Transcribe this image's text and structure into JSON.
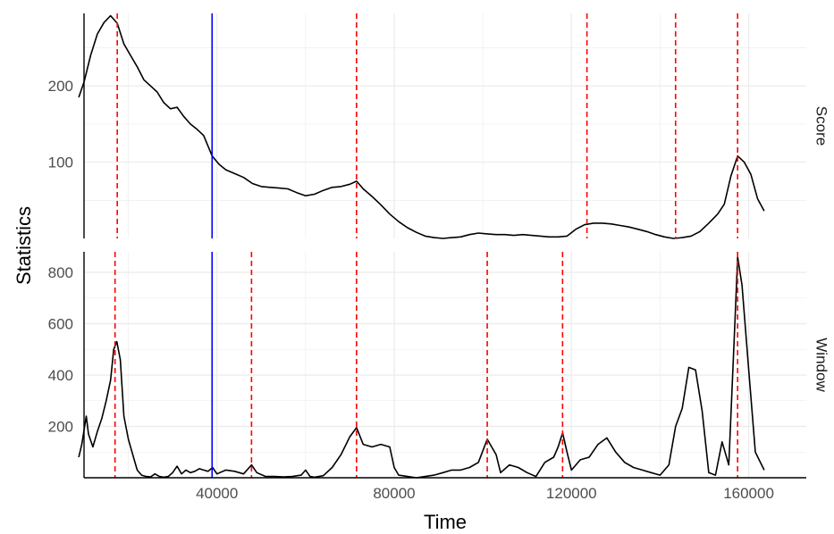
{
  "chart_data": {
    "type": "line",
    "xlabel": "Time",
    "ylabel": "Statistics",
    "x_ticks": [
      40000,
      80000,
      120000,
      160000
    ],
    "xlim": [
      10000,
      173000
    ],
    "blue_line_x": 38900,
    "colors": {
      "series": "#000000",
      "blue": "#0000ff",
      "red": "#ff0000",
      "grid": "#ebebeb"
    },
    "grid": true,
    "panels": [
      {
        "name": "Score",
        "strip_label": "Score",
        "ylim": [
          0,
          295
        ],
        "y_ticks": [
          100,
          200
        ],
        "red_lines": [
          17500,
          71500,
          123500,
          143500,
          157500
        ],
        "series": {
          "x": [
            8800,
            10000,
            11500,
            13000,
            14500,
            16000,
            17500,
            19000,
            20500,
            22000,
            23500,
            25000,
            26500,
            28000,
            29500,
            31000,
            32500,
            34000,
            35500,
            37000,
            38900,
            40500,
            42000,
            44000,
            46000,
            48000,
            50000,
            52000,
            54000,
            56000,
            58000,
            60000,
            62000,
            64000,
            66000,
            68000,
            70000,
            71500,
            73000,
            75000,
            77000,
            79000,
            81000,
            83000,
            85000,
            87000,
            89000,
            91000,
            93000,
            95000,
            97000,
            99000,
            101000,
            103000,
            105000,
            107000,
            109000,
            111000,
            113000,
            115000,
            117000,
            119000,
            121000,
            123000,
            125000,
            127000,
            129000,
            131000,
            133000,
            135000,
            137000,
            139000,
            141000,
            143000,
            145000,
            147000,
            149000,
            151000,
            153000,
            154500,
            156000,
            157500,
            159000,
            160500,
            162000,
            163500
          ],
          "y": [
            185,
            205,
            240,
            268,
            283,
            292,
            282,
            255,
            240,
            225,
            208,
            200,
            192,
            178,
            170,
            172,
            160,
            150,
            143,
            135,
            108,
            97,
            90,
            85,
            80,
            72,
            68,
            67,
            66,
            65,
            60,
            56,
            58,
            63,
            67,
            68,
            71,
            75,
            65,
            55,
            44,
            32,
            22,
            14,
            8,
            3,
            1,
            0,
            1,
            2,
            5,
            7,
            6,
            5,
            5,
            4,
            5,
            4,
            3,
            2,
            2,
            3,
            12,
            18,
            20,
            20,
            19,
            17,
            15,
            12,
            9,
            5,
            2,
            0,
            1,
            3,
            9,
            20,
            32,
            45,
            82,
            108,
            100,
            84,
            52,
            36
          ]
        }
      },
      {
        "name": "Window",
        "strip_label": "Window",
        "ylim": [
          0,
          880
        ],
        "y_ticks": [
          200,
          400,
          600,
          800
        ],
        "red_lines": [
          17000,
          47800,
          71500,
          101000,
          118000,
          157500
        ],
        "series": {
          "x": [
            8800,
            9500,
            10500,
            11000,
            12000,
            13000,
            14000,
            15000,
            16000,
            16700,
            17400,
            18200,
            19000,
            20000,
            21000,
            22000,
            23000,
            24000,
            25000,
            26000,
            27000,
            28000,
            29000,
            30000,
            31000,
            32000,
            33000,
            34000,
            35000,
            36000,
            37000,
            38000,
            39000,
            40000,
            42000,
            44000,
            46000,
            47800,
            49000,
            51000,
            53000,
            55000,
            57000,
            59000,
            60000,
            61000,
            62000,
            64000,
            66000,
            68000,
            70000,
            71500,
            73000,
            75000,
            77000,
            79000,
            80000,
            81000,
            83000,
            85000,
            87000,
            89000,
            91000,
            93000,
            95000,
            97000,
            99000,
            101000,
            103000,
            104000,
            106000,
            108000,
            110000,
            112000,
            114000,
            116000,
            117000,
            118000,
            119000,
            120000,
            122000,
            124000,
            126000,
            128000,
            130000,
            132000,
            134000,
            136000,
            138000,
            140000,
            142000,
            143500,
            145000,
            146500,
            148000,
            149500,
            151000,
            152500,
            154000,
            155500,
            157000,
            157500,
            158500,
            160000,
            161500,
            163500
          ],
          "y": [
            80,
            130,
            240,
            170,
            120,
            180,
            230,
            300,
            380,
            500,
            530,
            460,
            240,
            150,
            90,
            30,
            10,
            5,
            3,
            15,
            5,
            2,
            5,
            20,
            45,
            15,
            30,
            20,
            25,
            35,
            30,
            25,
            40,
            15,
            30,
            25,
            15,
            50,
            20,
            5,
            5,
            3,
            5,
            10,
            30,
            5,
            2,
            8,
            40,
            90,
            160,
            195,
            130,
            120,
            130,
            120,
            40,
            10,
            5,
            0,
            5,
            10,
            20,
            30,
            30,
            40,
            60,
            150,
            90,
            20,
            50,
            40,
            20,
            5,
            60,
            80,
            120,
            175,
            100,
            30,
            70,
            80,
            130,
            155,
            100,
            60,
            40,
            30,
            20,
            10,
            50,
            200,
            270,
            430,
            420,
            260,
            20,
            10,
            140,
            50,
            650,
            860,
            750,
            420,
            100,
            30
          ]
        }
      }
    ]
  }
}
